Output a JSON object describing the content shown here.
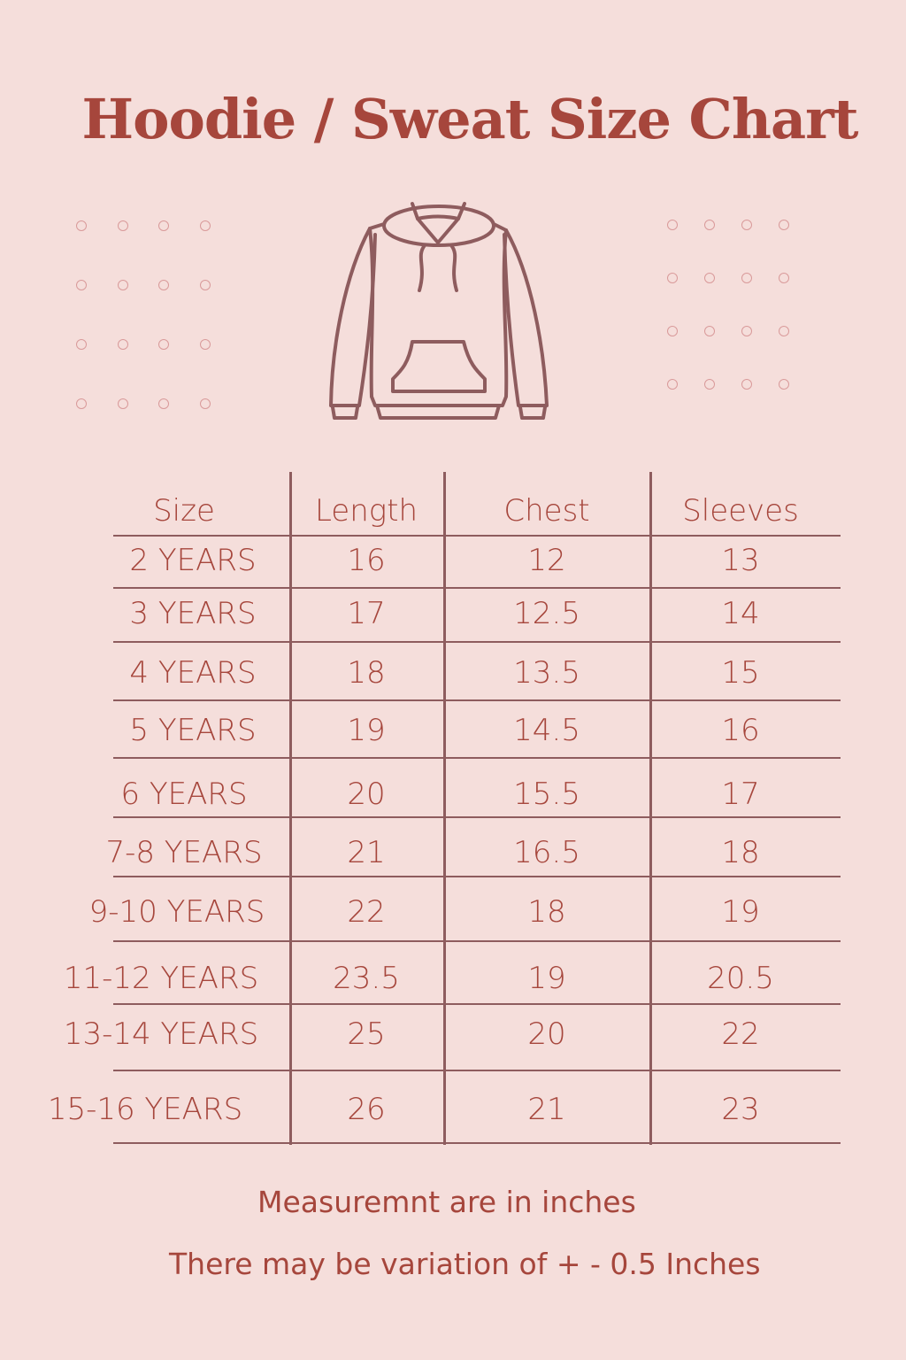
{
  "title": "Hoodie / Sweat Size Chart",
  "icon": "hoodie-icon",
  "colors": {
    "background": "#f5dedb",
    "text": "#a6463c",
    "lines": "#8e5c5e",
    "dots": "#d99a9a"
  },
  "table": {
    "headers": [
      "Size",
      "Length",
      "Chest",
      "Sleeves"
    ],
    "rows": [
      [
        "2 YEARS",
        "16",
        "12",
        "13"
      ],
      [
        "3 YEARS",
        "17",
        "12.5",
        "14"
      ],
      [
        "4 YEARS",
        "18",
        "13.5",
        "15"
      ],
      [
        "5 YEARS",
        "19",
        "14.5",
        "16"
      ],
      [
        "6 YEARS",
        "20",
        "15.5",
        "17"
      ],
      [
        "7-8 YEARS",
        "21",
        "16.5",
        "18"
      ],
      [
        "9-10 YEARS",
        "22",
        "18",
        "19"
      ],
      [
        "11-12 YEARS",
        "23.5",
        "19",
        "20.5"
      ],
      [
        "13-14 YEARS",
        "25",
        "20",
        "22"
      ],
      [
        "15-16 YEARS",
        "26",
        "21",
        "23"
      ]
    ]
  },
  "notes": {
    "unit": "Measuremnt are in inches",
    "variation": "There may be variation of + - 0.5 Inches"
  }
}
